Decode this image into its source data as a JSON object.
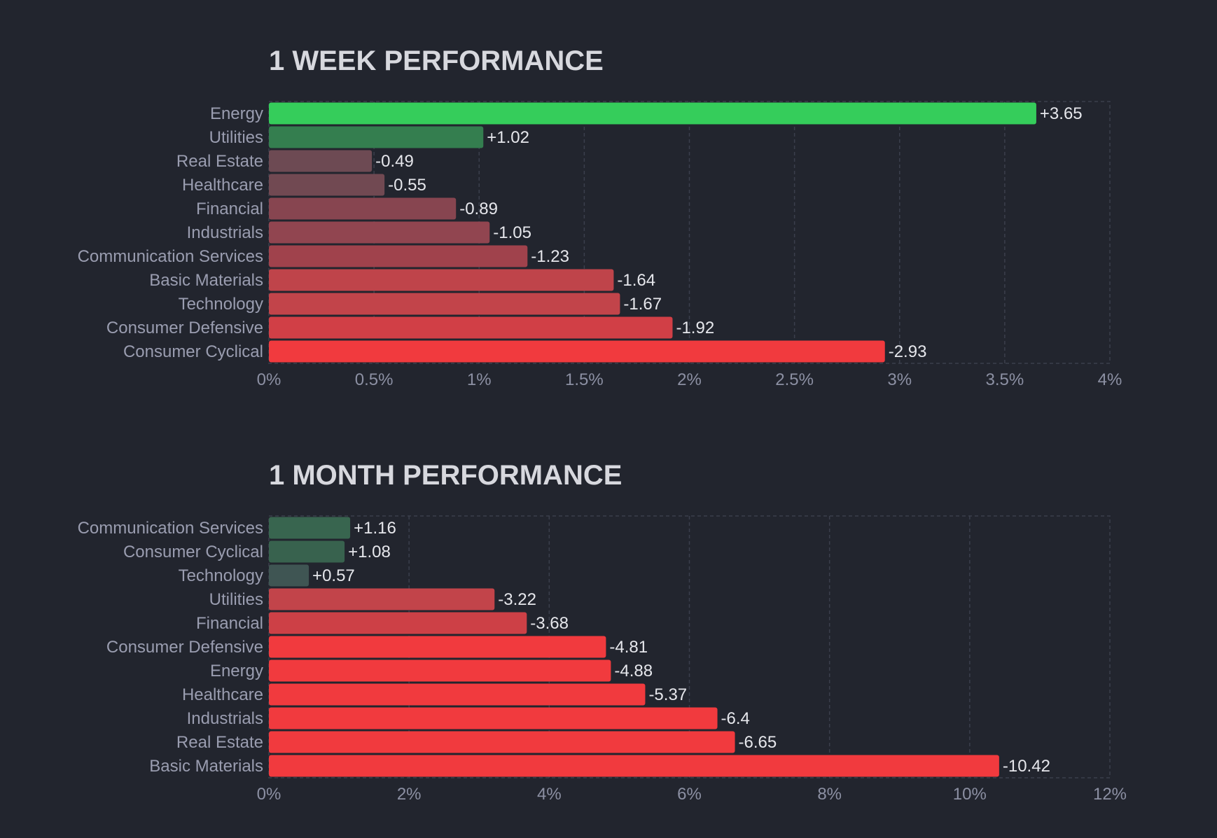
{
  "chart_data": [
    {
      "type": "bar",
      "orientation": "horizontal",
      "title": "1 WEEK PERFORMANCE",
      "categories": [
        "Energy",
        "Utilities",
        "Real Estate",
        "Healthcare",
        "Financial",
        "Industrials",
        "Communication Services",
        "Basic Materials",
        "Technology",
        "Consumer Defensive",
        "Consumer Cyclical"
      ],
      "values": [
        3.65,
        1.02,
        -0.49,
        -0.55,
        -0.89,
        -1.05,
        -1.23,
        -1.64,
        -1.67,
        -1.92,
        -2.93
      ],
      "value_labels": [
        "+3.65",
        "+1.02",
        "-0.49",
        "-0.55",
        "-0.89",
        "-1.05",
        "-1.23",
        "-1.64",
        "-1.67",
        "-1.92",
        "-2.93"
      ],
      "bar_colors": [
        "#35cd5b",
        "#347e4f",
        "#6d4a53",
        "#714952",
        "#874550",
        "#914550",
        "#a0424c",
        "#bf444a",
        "#c2444a",
        "#d13f46",
        "#f13a3e"
      ],
      "xlim": [
        0,
        4
      ],
      "xticks": [
        "0%",
        "0.5%",
        "1%",
        "1.5%",
        "2%",
        "2.5%",
        "3%",
        "3.5%",
        "4%"
      ],
      "grid": true
    },
    {
      "type": "bar",
      "orientation": "horizontal",
      "title": "1 MONTH PERFORMANCE",
      "categories": [
        "Communication Services",
        "Consumer Cyclical",
        "Technology",
        "Utilities",
        "Financial",
        "Consumer Defensive",
        "Energy",
        "Healthcare",
        "Industrials",
        "Real Estate",
        "Basic Materials"
      ],
      "values": [
        1.16,
        1.08,
        0.57,
        -3.22,
        -3.68,
        -4.81,
        -4.88,
        -5.37,
        -6.4,
        -6.65,
        -10.42
      ],
      "value_labels": [
        "+1.16",
        "+1.08",
        "+0.57",
        "-3.22",
        "-3.68",
        "-4.81",
        "-4.88",
        "-5.37",
        "-6.4",
        "-6.65",
        "-10.42"
      ],
      "bar_colors": [
        "#38654f",
        "#38624e",
        "#3f5553",
        "#c2444a",
        "#cd4046",
        "#f13a3e",
        "#f13a3e",
        "#f13a3e",
        "#f13a3e",
        "#f13a3e",
        "#f13a3e"
      ],
      "xlim": [
        0,
        12
      ],
      "xticks": [
        "0%",
        "2%",
        "4%",
        "6%",
        "8%",
        "10%",
        "12%"
      ],
      "grid": true
    }
  ]
}
